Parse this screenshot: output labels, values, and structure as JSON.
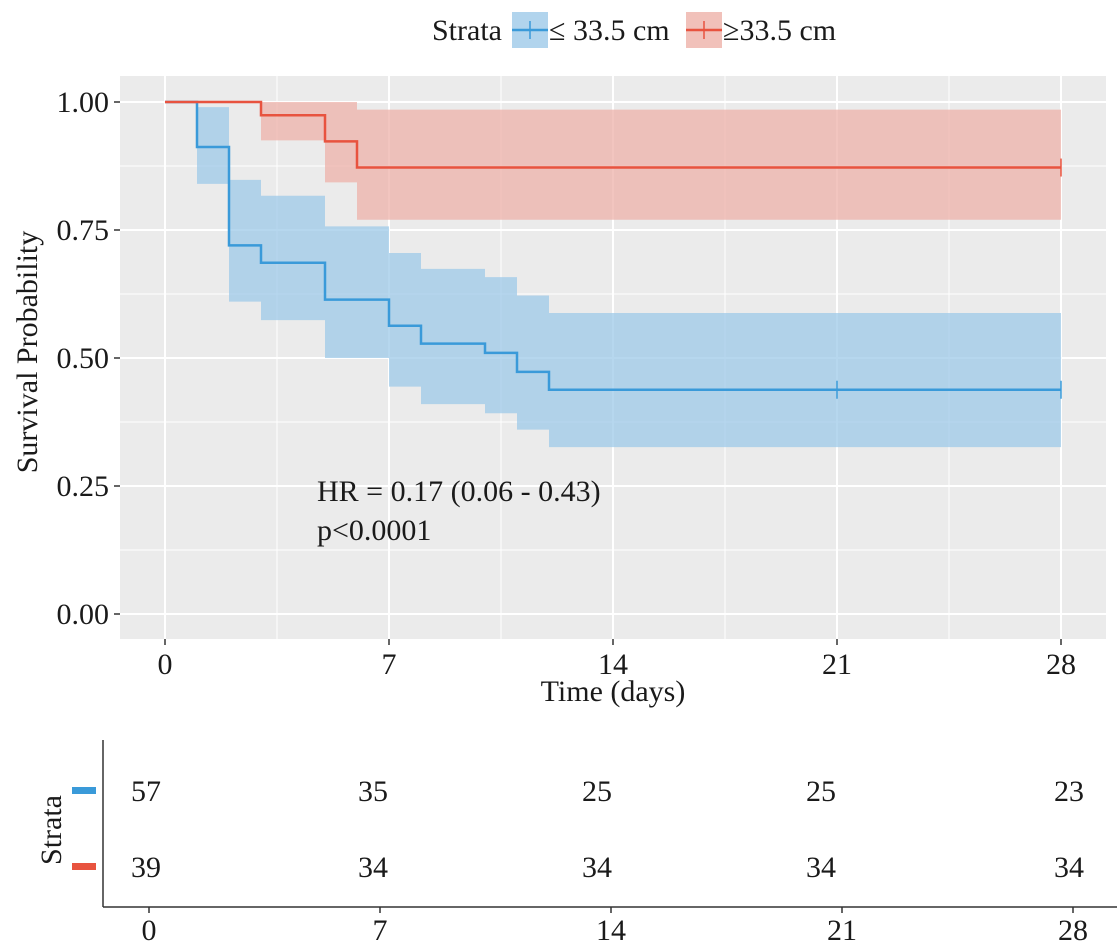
{
  "chart_data": {
    "type": "survival-step",
    "legend": {
      "title": "Strata",
      "position": "top",
      "entries": [
        "≤ 33.5 cm",
        "≥33.5 cm"
      ]
    },
    "xlabel": "Time (days)",
    "ylabel": "Survival Probability",
    "xlim": [
      0,
      28
    ],
    "ylim": [
      0,
      1.0
    ],
    "xticks": [
      0,
      7,
      14,
      21,
      28
    ],
    "yticks": [
      0.0,
      0.25,
      0.5,
      0.75,
      1.0
    ],
    "ytick_labels": [
      "0.00",
      "0.25",
      "0.50",
      "0.75",
      "1.00"
    ],
    "grid": true,
    "series": [
      {
        "name": "≤ 33.5 cm",
        "color": "#3a9ad9",
        "fill": "#9ec9e8",
        "times": [
          0,
          1,
          2,
          3,
          5,
          7,
          8,
          10,
          11,
          12,
          28
        ],
        "survival": [
          1.0,
          0.912,
          0.72,
          0.686,
          0.614,
          0.563,
          0.528,
          0.51,
          0.473,
          0.438,
          0.438
        ],
        "lower": [
          1.0,
          0.84,
          0.61,
          0.574,
          0.5,
          0.444,
          0.41,
          0.392,
          0.36,
          0.326,
          0.326
        ],
        "upper": [
          1.0,
          0.99,
          0.848,
          0.817,
          0.757,
          0.705,
          0.674,
          0.658,
          0.622,
          0.588,
          0.588
        ],
        "censor_times": [
          21,
          28
        ],
        "censor_values": [
          0.438,
          0.438
        ]
      },
      {
        "name": "≥33.5 cm",
        "color": "#e8533f",
        "fill": "#eeb1a9",
        "times": [
          0,
          3,
          5,
          6,
          28
        ],
        "survival": [
          1.0,
          0.974,
          0.923,
          0.872,
          0.872
        ],
        "lower": [
          1.0,
          0.925,
          0.843,
          0.77,
          0.77
        ],
        "upper": [
          1.0,
          1.0,
          1.0,
          0.985,
          0.985
        ],
        "censor_times": [
          28
        ],
        "censor_values": [
          0.872
        ]
      }
    ],
    "annotations": {
      "hr": "HR = 0.17 (0.06 - 0.43)",
      "p": "p<0.0001"
    },
    "risk_table": {
      "ylabel": "Strata",
      "times": [
        0,
        7,
        14,
        21,
        28
      ],
      "rows": [
        {
          "name": "≤ 33.5 cm",
          "color": "#3a9ad9",
          "values": [
            "57",
            "35",
            "25",
            "25",
            "23"
          ]
        },
        {
          "name": "≥33.5 cm",
          "color": "#e8533f",
          "values": [
            "39",
            "34",
            "34",
            "34",
            "34"
          ]
        }
      ]
    }
  }
}
